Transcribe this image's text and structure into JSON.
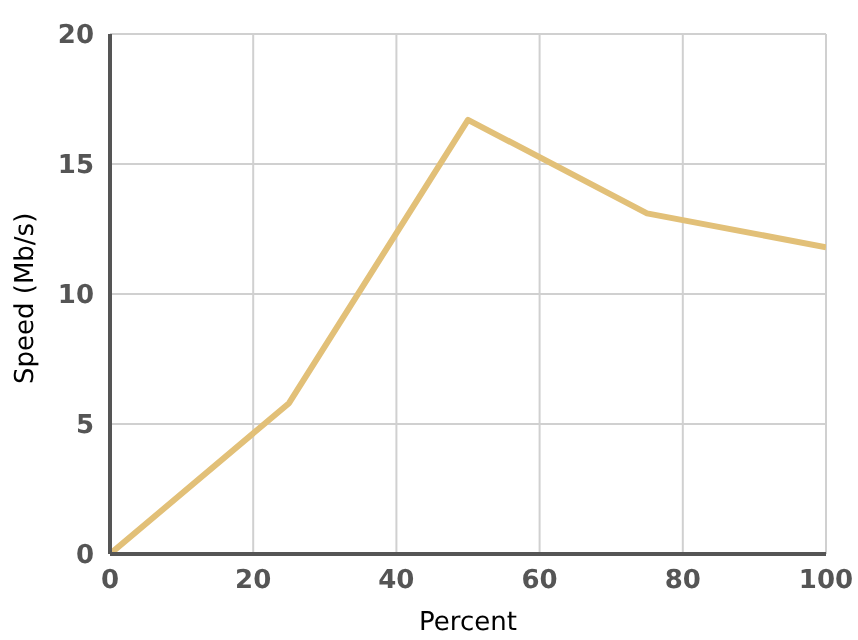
{
  "chart_data": {
    "type": "line",
    "xlabel": "Percent",
    "ylabel": "Speed (Mb/s)",
    "x": [
      0,
      25,
      50,
      75,
      100
    ],
    "series": [
      {
        "color": "#e2c078",
        "values": [
          0,
          5.8,
          16.7,
          13.1,
          11.8
        ]
      }
    ],
    "xlim": [
      0,
      100
    ],
    "xticks": [
      0,
      20,
      40,
      60,
      80,
      100
    ],
    "ylim": [
      0,
      20
    ],
    "yticks": [
      0,
      5,
      10,
      15,
      20
    ],
    "grid": true,
    "legend": false,
    "marker": "none",
    "line_style": "solid"
  }
}
